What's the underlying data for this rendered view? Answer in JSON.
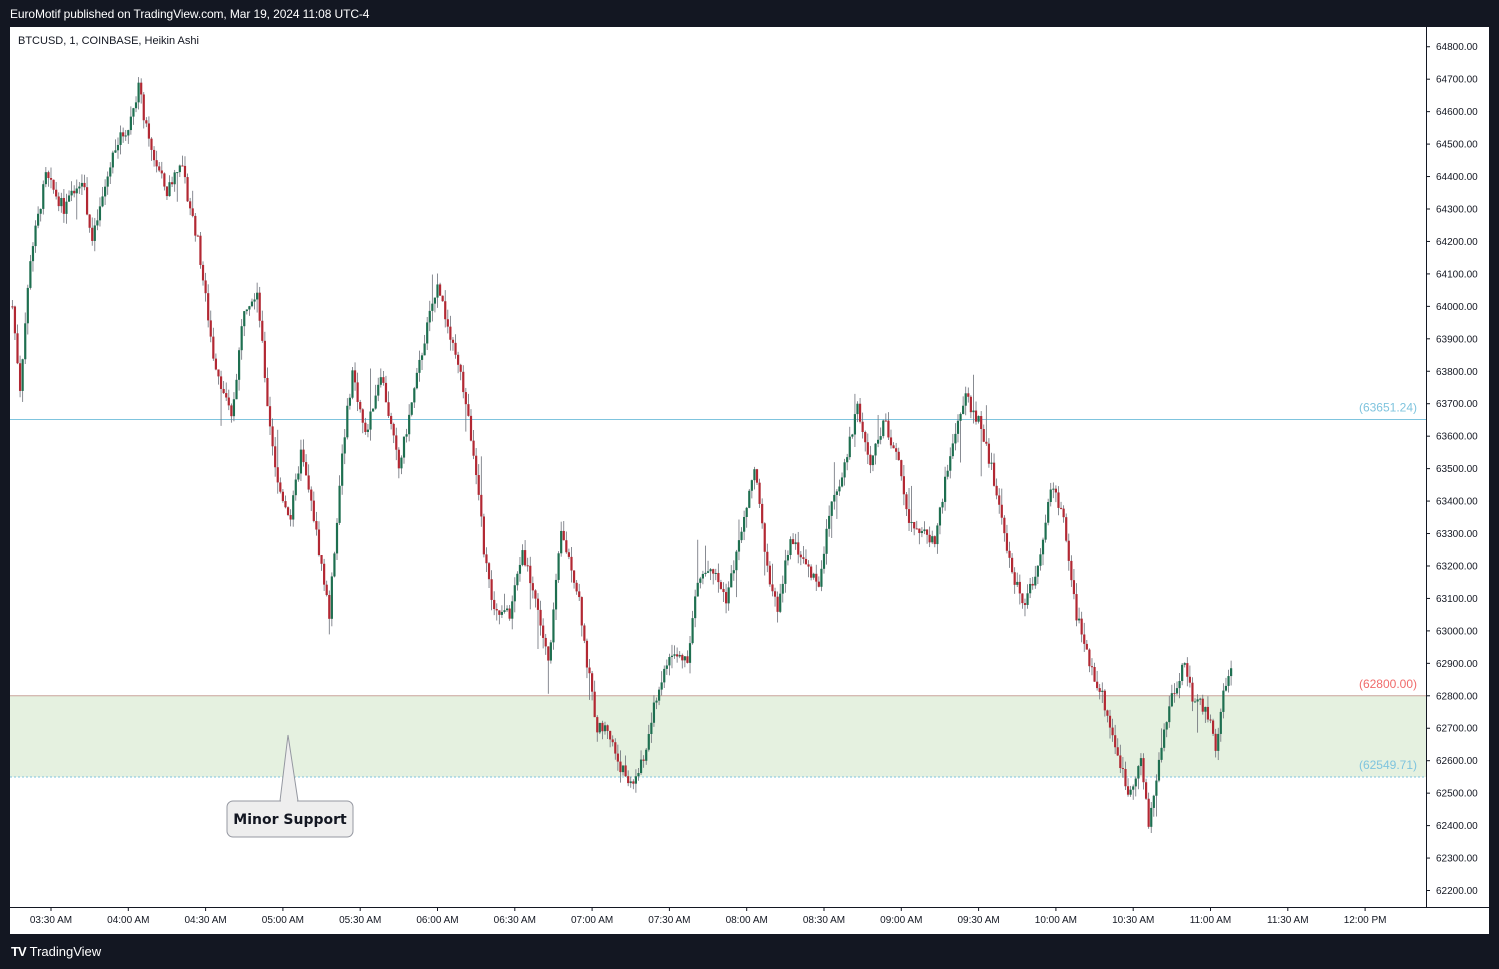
{
  "header": {
    "publish_text": "EuroMotif published on TradingView.com, Mar 19, 2024 11:08 UTC-4"
  },
  "symbol_info": "BTCUSD, 1, COINBASE, Heikin Ashi",
  "footer": {
    "brand": "TradingView",
    "logo_icon": "tradingview-logo-icon"
  },
  "colors": {
    "up": "#1e6f50",
    "down": "#b22833",
    "wick": "#6b6f78",
    "resistance_line": "#7fc4de",
    "support_zone": "#e5f1e0",
    "price_label_blue": "#7fc4de",
    "price_label_red": "#f06b6b"
  },
  "chart_data": {
    "type": "candlestick",
    "chart_style": "Heikin Ashi",
    "symbol": "BTCUSD",
    "interval": "1",
    "exchange": "COINBASE",
    "ylim": [
      62180,
      64830
    ],
    "y_ticks": [
      "64800.00",
      "64700.00",
      "64600.00",
      "64500.00",
      "64400.00",
      "64300.00",
      "64200.00",
      "64100.00",
      "64000.00",
      "63900.00",
      "63800.00",
      "63700.00",
      "63600.00",
      "63500.00",
      "63400.00",
      "63300.00",
      "63200.00",
      "63100.00",
      "63000.00",
      "62900.00",
      "62800.00",
      "62700.00",
      "62600.00",
      "62500.00",
      "62400.00",
      "62300.00",
      "62200.00"
    ],
    "x_ticks": [
      "03:30 AM",
      "04:00 AM",
      "04:30 AM",
      "05:00 AM",
      "05:30 AM",
      "06:00 AM",
      "06:30 AM",
      "07:00 AM",
      "07:30 AM",
      "08:00 AM",
      "08:30 AM",
      "09:00 AM",
      "09:30 AM",
      "10:00 AM",
      "10:30 AM",
      "11:00 AM",
      "11:30 AM",
      "12:00 PM"
    ],
    "price_path": [
      [
        "03:15 AM",
        64000
      ],
      [
        "03:18 AM",
        63750
      ],
      [
        "03:22 AM",
        64150
      ],
      [
        "03:28 AM",
        64400
      ],
      [
        "03:35 AM",
        64300
      ],
      [
        "03:42 AM",
        64400
      ],
      [
        "03:46 AM",
        64200
      ],
      [
        "03:55 AM",
        64500
      ],
      [
        "04:00 AM",
        64550
      ],
      [
        "04:04 AM",
        64680
      ],
      [
        "04:08 AM",
        64500
      ],
      [
        "04:15 AM",
        64350
      ],
      [
        "04:20 AM",
        64450
      ],
      [
        "04:27 AM",
        64200
      ],
      [
        "04:33 AM",
        63850
      ],
      [
        "04:40 AM",
        63650
      ],
      [
        "04:45 AM",
        64000
      ],
      [
        "04:50 AM",
        64050
      ],
      [
        "04:54 AM",
        63700
      ],
      [
        "04:58 AM",
        63450
      ],
      [
        "05:03 AM",
        63350
      ],
      [
        "05:07 AM",
        63550
      ],
      [
        "05:12 AM",
        63350
      ],
      [
        "05:18 AM",
        63050
      ],
      [
        "05:23 AM",
        63550
      ],
      [
        "05:27 AM",
        63800
      ],
      [
        "05:32 AM",
        63600
      ],
      [
        "05:38 AM",
        63800
      ],
      [
        "05:45 AM",
        63500
      ],
      [
        "05:50 AM",
        63700
      ],
      [
        "05:55 AM",
        63900
      ],
      [
        "06:00 AM",
        64080
      ],
      [
        "06:05 AM",
        63900
      ],
      [
        "06:10 AM",
        63750
      ],
      [
        "06:15 AM",
        63500
      ],
      [
        "06:18 AM",
        63250
      ],
      [
        "06:22 AM",
        63050
      ],
      [
        "06:28 AM",
        63050
      ],
      [
        "06:33 AM",
        63250
      ],
      [
        "06:38 AM",
        63100
      ],
      [
        "06:43 AM",
        62900
      ],
      [
        "06:48 AM",
        63300
      ],
      [
        "06:52 AM",
        63200
      ],
      [
        "06:55 AM",
        63100
      ],
      [
        "06:58 AM",
        62900
      ],
      [
        "07:02 AM",
        62700
      ],
      [
        "07:06 AM",
        62700
      ],
      [
        "07:10 AM",
        62600
      ],
      [
        "07:15 AM",
        62520
      ],
      [
        "07:20 AM",
        62600
      ],
      [
        "07:25 AM",
        62800
      ],
      [
        "07:30 AM",
        62920
      ],
      [
        "07:37 AM",
        62920
      ],
      [
        "07:41 AM",
        63150
      ],
      [
        "07:46 AM",
        63200
      ],
      [
        "07:52 AM",
        63100
      ],
      [
        "07:58 AM",
        63300
      ],
      [
        "08:03 AM",
        63500
      ],
      [
        "08:08 AM",
        63200
      ],
      [
        "08:12 AM",
        63050
      ],
      [
        "08:17 AM",
        63300
      ],
      [
        "08:23 AM",
        63200
      ],
      [
        "08:28 AM",
        63150
      ],
      [
        "08:33 AM",
        63400
      ],
      [
        "08:38 AM",
        63500
      ],
      [
        "08:43 AM",
        63700
      ],
      [
        "08:48 AM",
        63500
      ],
      [
        "08:53 AM",
        63650
      ],
      [
        "08:58 AM",
        63550
      ],
      [
        "09:03 AM",
        63350
      ],
      [
        "09:08 AM",
        63300
      ],
      [
        "09:13 AM",
        63280
      ],
      [
        "09:18 AM",
        63500
      ],
      [
        "09:22 AM",
        63650
      ],
      [
        "09:25 AM",
        63720
      ],
      [
        "09:30 AM",
        63650
      ],
      [
        "09:35 AM",
        63500
      ],
      [
        "09:40 AM",
        63300
      ],
      [
        "09:44 AM",
        63150
      ],
      [
        "09:48 AM",
        63080
      ],
      [
        "09:53 AM",
        63200
      ],
      [
        "09:58 AM",
        63450
      ],
      [
        "10:03 AM",
        63350
      ],
      [
        "10:08 AM",
        63050
      ],
      [
        "10:13 AM",
        62900
      ],
      [
        "10:18 AM",
        62800
      ],
      [
        "10:23 AM",
        62650
      ],
      [
        "10:28 AM",
        62500
      ],
      [
        "10:33 AM",
        62600
      ],
      [
        "10:36 AM",
        62400
      ],
      [
        "10:40 AM",
        62600
      ],
      [
        "10:45 AM",
        62800
      ],
      [
        "10:50 AM",
        62900
      ],
      [
        "10:53 AM",
        62800
      ],
      [
        "10:58 AM",
        62760
      ],
      [
        "11:02 AM",
        62650
      ],
      [
        "11:05 AM",
        62800
      ],
      [
        "11:08 AM",
        62900
      ]
    ],
    "horizontal_lines": [
      {
        "value": 63651.24,
        "label": "(63651.24)",
        "style": "solid"
      },
      {
        "value": 62800.0,
        "label": "(62800.00)",
        "style": "solid"
      },
      {
        "value": 62549.71,
        "label": "(62549.71)",
        "style": "dotted"
      }
    ],
    "support_zone": {
      "from": 62549.71,
      "to": 62800.0
    },
    "annotations": [
      {
        "text": "Minor Support",
        "type": "callout",
        "time": "05:00 AM"
      }
    ],
    "grid": false,
    "axis_position": "right"
  }
}
